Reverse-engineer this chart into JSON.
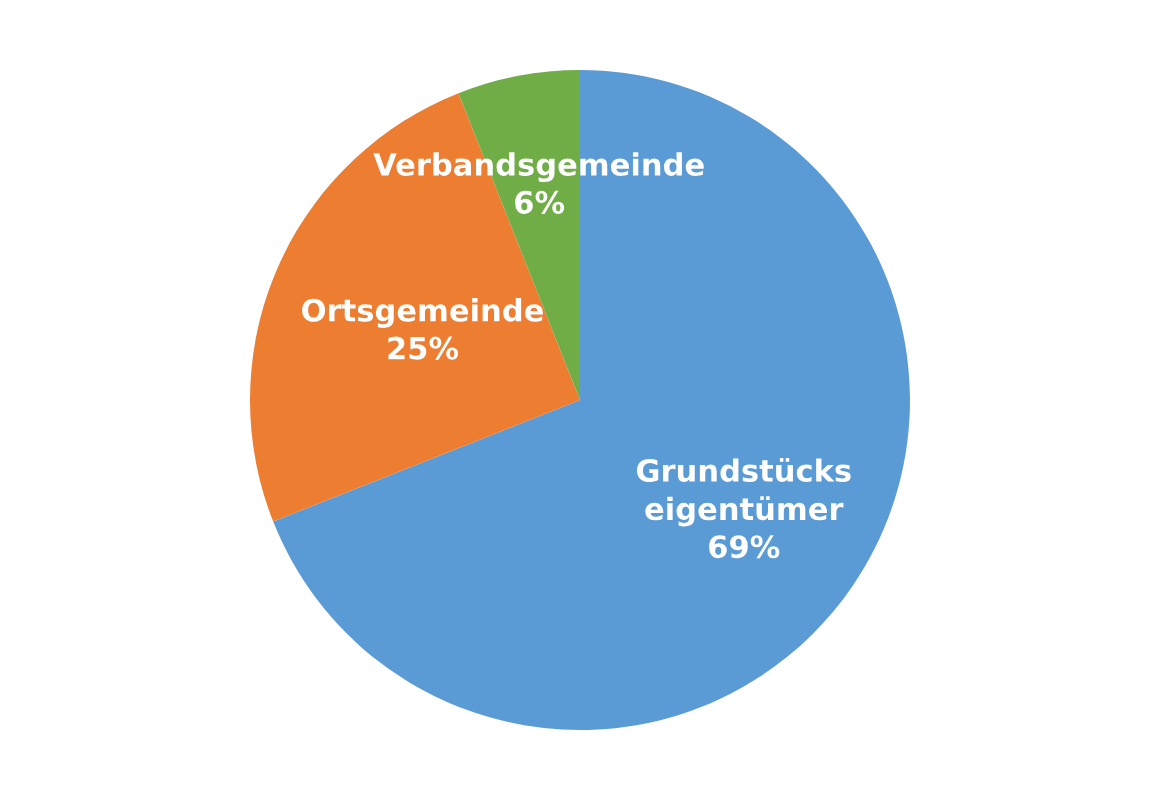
{
  "chart_data": {
    "type": "pie",
    "categories": [
      "Grundstücks\neigentümer",
      "Ortsgemeinde",
      "Verbandsgemeinde"
    ],
    "values": [
      69,
      25,
      6
    ],
    "value_labels": [
      "69%",
      "25%",
      "6%"
    ],
    "colors": [
      "#5b9bd5",
      "#ed7d31",
      "#70ad47"
    ]
  }
}
